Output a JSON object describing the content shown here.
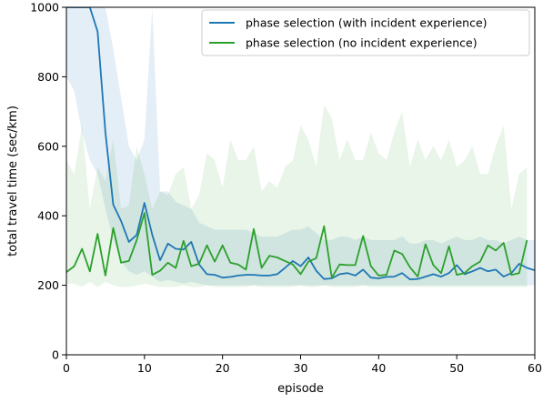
{
  "chart_data": {
    "type": "line",
    "title": "",
    "xlabel": "episode",
    "ylabel": "total travel time (sec/km)",
    "xlim": [
      0,
      60
    ],
    "ylim": [
      0,
      1000
    ],
    "xticks": [
      0,
      10,
      20,
      30,
      40,
      50,
      60
    ],
    "yticks": [
      0,
      200,
      400,
      600,
      800,
      1000
    ],
    "grid": false,
    "legend_position": "top-right",
    "x": [
      0,
      1,
      2,
      3,
      4,
      5,
      6,
      7,
      8,
      9,
      10,
      11,
      12,
      13,
      14,
      15,
      16,
      17,
      18,
      19,
      20,
      21,
      22,
      23,
      24,
      25,
      26,
      27,
      28,
      29,
      30,
      31,
      32,
      33,
      34,
      35,
      36,
      37,
      38,
      39,
      40,
      41,
      42,
      43,
      44,
      45,
      46,
      47,
      48,
      49,
      50,
      51,
      52,
      53,
      54,
      55,
      56,
      57,
      58,
      59,
      60
    ],
    "series": [
      {
        "name": "phase selection (with incident experience)",
        "color": "#1f77b4",
        "values": [
          1000,
          1000,
          1000,
          1000,
          930,
          640,
          432,
          385,
          325,
          345,
          437,
          345,
          272,
          320,
          305,
          303,
          325,
          260,
          232,
          230,
          222,
          224,
          228,
          230,
          230,
          228,
          228,
          232,
          250,
          270,
          255,
          280,
          242,
          218,
          220,
          232,
          235,
          228,
          245,
          222,
          220,
          224,
          225,
          235,
          217,
          218,
          225,
          232,
          225,
          235,
          258,
          232,
          240,
          250,
          240,
          245,
          225,
          235,
          262,
          250,
          243
        ],
        "band_low": [
          800,
          760,
          640,
          560,
          520,
          420,
          330,
          270,
          240,
          230,
          240,
          225,
          210,
          215,
          210,
          205,
          210,
          205,
          200,
          200,
          200,
          200,
          200,
          200,
          200,
          200,
          200,
          200,
          200,
          200,
          200,
          200,
          200,
          200,
          200,
          200,
          200,
          200,
          200,
          200,
          200,
          200,
          200,
          200,
          200,
          200,
          200,
          200,
          200,
          200,
          200,
          200,
          200,
          200,
          200,
          200,
          200,
          200,
          200,
          200,
          200
        ],
        "band_high": [
          1000,
          1000,
          1000,
          1000,
          1000,
          1000,
          880,
          740,
          600,
          560,
          620,
          1000,
          470,
          470,
          440,
          430,
          420,
          380,
          370,
          360,
          360,
          360,
          360,
          360,
          350,
          340,
          340,
          340,
          350,
          360,
          360,
          370,
          350,
          330,
          330,
          340,
          340,
          330,
          340,
          330,
          330,
          330,
          330,
          340,
          320,
          320,
          330,
          330,
          320,
          330,
          340,
          330,
          330,
          340,
          330,
          330,
          320,
          330,
          340,
          330,
          330
        ]
      },
      {
        "name": "phase selection (no incident experience)",
        "color": "#2ca02c",
        "values": [
          238,
          255,
          305,
          240,
          348,
          228,
          365,
          265,
          270,
          330,
          408,
          230,
          242,
          265,
          250,
          328,
          255,
          262,
          315,
          268,
          315,
          265,
          260,
          245,
          362,
          250,
          285,
          280,
          270,
          260,
          232,
          268,
          278,
          370,
          222,
          260,
          258,
          258,
          342,
          255,
          228,
          230,
          300,
          290,
          252,
          225,
          318,
          258,
          235,
          312,
          230,
          235,
          255,
          268,
          315,
          300,
          322,
          230,
          235,
          330,
          null
        ],
        "band_low": [
          205,
          205,
          195,
          210,
          195,
          210,
          200,
          195,
          195,
          200,
          205,
          200,
          195,
          195,
          195,
          200,
          195,
          195,
          200,
          195,
          195,
          195,
          195,
          195,
          200,
          195,
          195,
          195,
          195,
          195,
          200,
          195,
          195,
          200,
          195,
          195,
          195,
          195,
          200,
          195,
          195,
          195,
          195,
          195,
          195,
          195,
          195,
          195,
          195,
          195,
          195,
          195,
          195,
          195,
          195,
          195,
          195,
          195,
          195,
          195,
          null
        ],
        "band_high": [
          560,
          520,
          660,
          420,
          540,
          500,
          620,
          420,
          430,
          600,
          520,
          420,
          470,
          460,
          520,
          540,
          420,
          460,
          580,
          560,
          480,
          620,
          560,
          560,
          600,
          470,
          500,
          480,
          540,
          560,
          660,
          620,
          540,
          720,
          680,
          560,
          620,
          560,
          560,
          640,
          580,
          560,
          640,
          700,
          540,
          620,
          560,
          600,
          560,
          620,
          540,
          560,
          600,
          520,
          520,
          600,
          660,
          420,
          520,
          540,
          null
        ]
      }
    ]
  }
}
